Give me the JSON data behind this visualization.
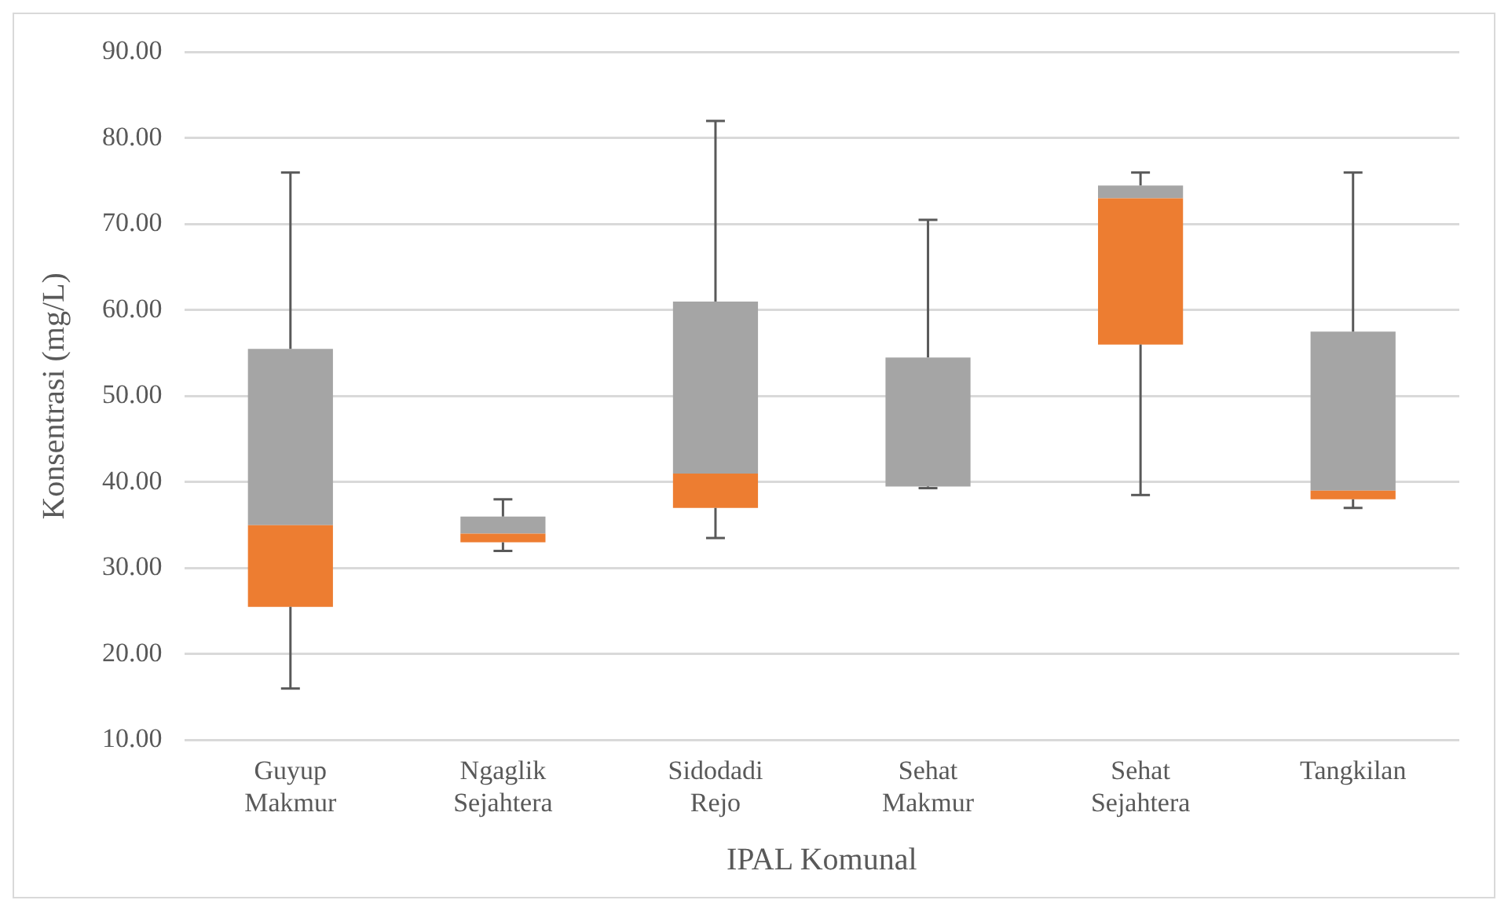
{
  "chart_data": {
    "type": "box",
    "xlabel": "IPAL Komunal",
    "ylabel": "Konsentrasi (mg/L)",
    "categories": [
      "Guyup Makmur",
      "Ngaglik Sejahtera",
      "Sidodadi Rejo",
      "Sehat Makmur",
      "Sehat Sejahtera",
      "Tangkilan"
    ],
    "color": "#a5a5a5",
    "colors": [
      "#ed7d31",
      "#ed7d31",
      "#ed7d31",
      "#a5a5a5",
      "#ed7d31",
      "#ed7d31"
    ],
    "boxes": [
      {
        "low": 16,
        "q1": 25.5,
        "median": 35,
        "q3": 55.5,
        "high": 76
      },
      {
        "low": 32,
        "q1": 33,
        "median": 34,
        "q3": 36,
        "high": 38
      },
      {
        "low": 33.5,
        "q1": 37,
        "median": 41,
        "q3": 61,
        "high": 82
      },
      {
        "low": 39.3,
        "q1": 39.5,
        "median": 39.5,
        "q3": 54.5,
        "high": 70.5
      },
      {
        "low": 38.5,
        "q1": 56,
        "median": 73,
        "q3": 74.5,
        "high": 76
      },
      {
        "low": 37,
        "q1": 38,
        "median": 39,
        "q3": 57.5,
        "high": 76
      }
    ],
    "ylim": [
      10,
      90
    ],
    "yticks": [
      {
        "value": 10,
        "label": "10.00"
      },
      {
        "value": 20,
        "label": "20.00"
      },
      {
        "value": 30,
        "label": "30.00"
      },
      {
        "value": 40,
        "label": "40.00"
      },
      {
        "value": 50,
        "label": "50.00"
      },
      {
        "value": 60,
        "label": "60.00"
      },
      {
        "value": 70,
        "label": "70.00"
      },
      {
        "value": 80,
        "label": "80.00"
      },
      {
        "value": 90,
        "label": "90.00"
      }
    ],
    "grid": "y",
    "legend": false
  }
}
